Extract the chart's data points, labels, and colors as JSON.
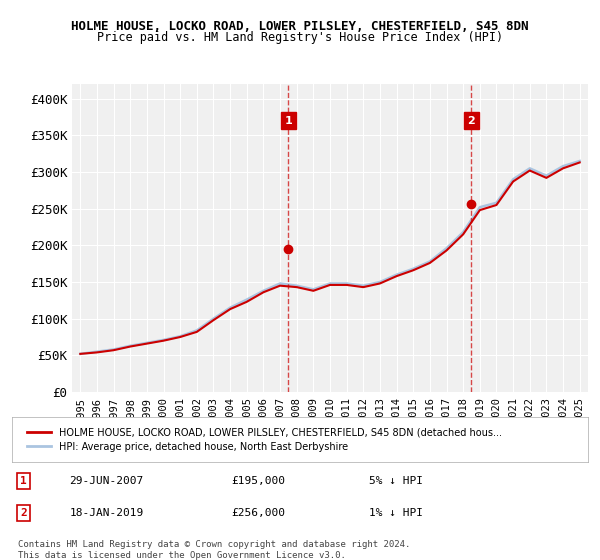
{
  "title": "HOLME HOUSE, LOCKO ROAD, LOWER PILSLEY, CHESTERFIELD, S45 8DN",
  "subtitle": "Price paid vs. HM Land Registry's House Price Index (HPI)",
  "ylim": [
    0,
    420000
  ],
  "yticks": [
    0,
    50000,
    100000,
    150000,
    200000,
    250000,
    300000,
    350000,
    400000
  ],
  "ytick_labels": [
    "£0",
    "£50K",
    "£100K",
    "£150K",
    "£200K",
    "£250K",
    "£300K",
    "£350K",
    "£400K"
  ],
  "sale1": {
    "date_idx": 12.5,
    "year_label": "2007",
    "value": 195000,
    "label": "1",
    "date_str": "29-JUN-2007",
    "pct": "5% ↓ HPI"
  },
  "sale2": {
    "date_idx": 23.5,
    "year_label": "2019",
    "value": 256000,
    "label": "2",
    "date_str": "18-JAN-2019",
    "pct": "1% ↓ HPI"
  },
  "legend_line1": "HOLME HOUSE, LOCKO ROAD, LOWER PILSLEY, CHESTERFIELD, S45 8DN (detached hous...",
  "legend_line2": "HPI: Average price, detached house, North East Derbyshire",
  "footer": "Contains HM Land Registry data © Crown copyright and database right 2024.\nThis data is licensed under the Open Government Licence v3.0.",
  "bg_color": "#ffffff",
  "plot_bg": "#f0f0f0",
  "grid_color": "#ffffff",
  "hpi_color": "#aac4e0",
  "price_color": "#cc0000",
  "dashed_color": "#cc0000",
  "years": [
    1995,
    1996,
    1997,
    1998,
    1999,
    2000,
    2001,
    2002,
    2003,
    2004,
    2005,
    2006,
    2007,
    2008,
    2009,
    2010,
    2011,
    2012,
    2013,
    2014,
    2015,
    2016,
    2017,
    2018,
    2019,
    2020,
    2021,
    2022,
    2023,
    2024,
    2025
  ],
  "hpi_values": [
    52000,
    55000,
    58000,
    63000,
    67000,
    71000,
    76000,
    84000,
    100000,
    115000,
    126000,
    138000,
    148000,
    145000,
    140000,
    148000,
    148000,
    145000,
    150000,
    160000,
    168000,
    178000,
    196000,
    218000,
    252000,
    258000,
    290000,
    305000,
    295000,
    308000,
    315000
  ],
  "price_values": [
    52000,
    54000,
    57000,
    62000,
    66000,
    70000,
    75000,
    82000,
    98000,
    113000,
    123000,
    136000,
    145000,
    143000,
    138000,
    146000,
    146000,
    143000,
    148000,
    158000,
    166000,
    176000,
    193000,
    215000,
    248000,
    255000,
    287000,
    302000,
    292000,
    305000,
    313000
  ]
}
